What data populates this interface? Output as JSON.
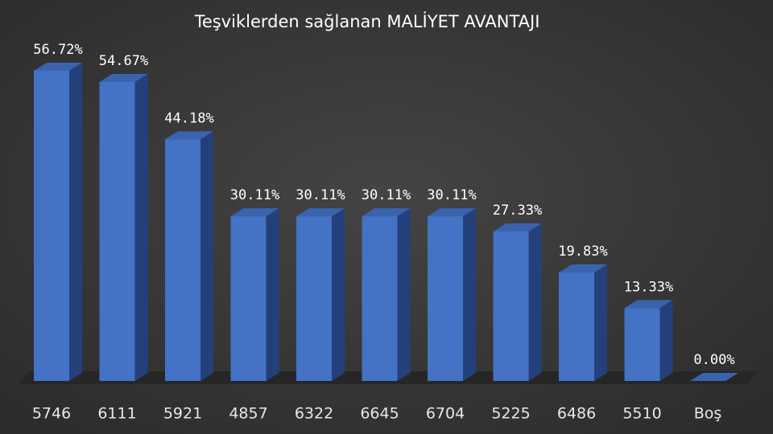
{
  "chart_data": {
    "type": "bar3d",
    "title": "Teşviklerden sağlanan MALİYET AVANTAJI",
    "categories": [
      "5746",
      "6111",
      "5921",
      "4857",
      "6322",
      "6645",
      "6704",
      "5225",
      "6486",
      "5510",
      "Boş"
    ],
    "values": [
      56.72,
      54.67,
      44.18,
      30.11,
      30.11,
      30.11,
      30.11,
      27.33,
      19.83,
      13.33,
      0
    ],
    "value_labels": [
      "56.72%",
      "54.67%",
      "44.18%",
      "30.11%",
      "30.11%",
      "30.11%",
      "30.11%",
      "27.33%",
      "19.83%",
      "13.33%",
      "0.00%"
    ],
    "color": "#4472c4"
  }
}
